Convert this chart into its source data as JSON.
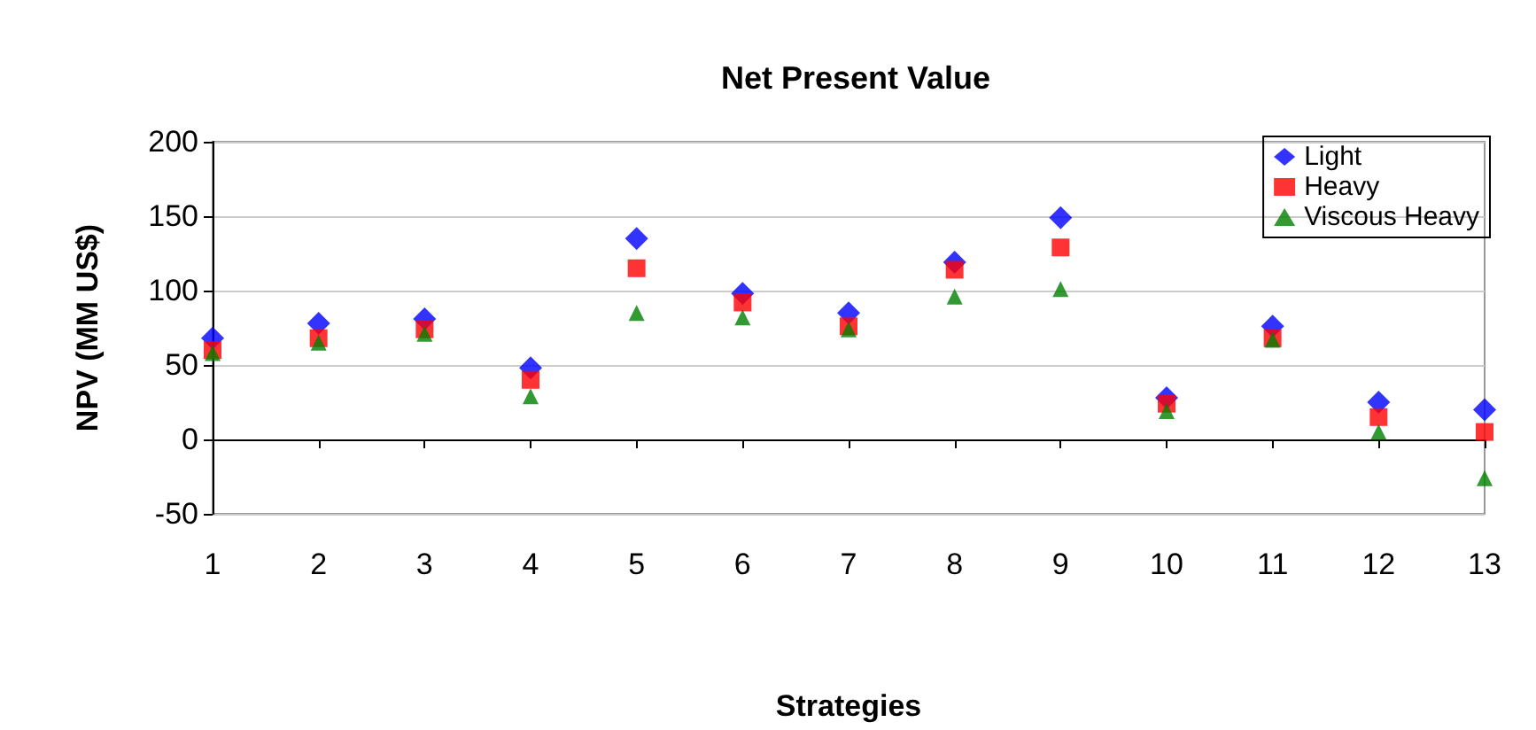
{
  "chart_data": {
    "type": "scatter",
    "title": "Net Present Value",
    "xlabel": "Strategies",
    "ylabel": "NPV (MM US$)",
    "x": [
      1,
      2,
      3,
      4,
      5,
      6,
      7,
      8,
      9,
      10,
      11,
      12,
      13
    ],
    "series": [
      {
        "name": "Light",
        "color": "#0000ff",
        "marker": "diamond",
        "values": [
          68,
          78,
          81,
          48,
          135,
          98,
          85,
          119,
          149,
          28,
          76,
          25,
          20
        ]
      },
      {
        "name": "Heavy",
        "color": "#ff0000",
        "marker": "square",
        "values": [
          60,
          68,
          74,
          40,
          115,
          92,
          76,
          114,
          129,
          24,
          68,
          15,
          5
        ]
      },
      {
        "name": "Viscous Heavy",
        "color": "#008000",
        "marker": "triangle",
        "values": [
          58,
          65,
          71,
          29,
          85,
          82,
          74,
          96,
          101,
          19,
          67,
          5,
          -26
        ]
      }
    ],
    "xlim": [
      1,
      13
    ],
    "xticks": [
      1,
      2,
      3,
      4,
      5,
      6,
      7,
      8,
      9,
      10,
      11,
      12,
      13
    ],
    "ylim": [
      -50,
      200
    ],
    "yticks": [
      -50,
      0,
      50,
      100,
      150,
      200
    ],
    "grid": "y",
    "legend": "top right"
  }
}
